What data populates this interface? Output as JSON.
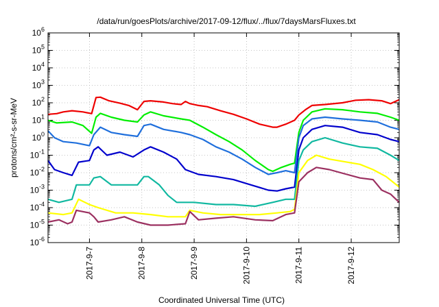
{
  "chart_data": {
    "type": "line",
    "title": "/data/run/goesPlots/archive/2017-09-12/flux/../flux/7daysMarsFluxes.txt",
    "xlabel": "Coordinated Universal Time (UTC)",
    "ylabel": "protons/cm²-s-sr-MeV",
    "yscale": "log",
    "ylim": [
      1e-06,
      1000000.0
    ],
    "xlim": [
      "2017-09-06T05:00",
      "2017-09-12T22:00"
    ],
    "grid": true,
    "x_ticks": [
      "2017-9-7",
      "2017-9-8",
      "2017-9-9",
      "2017-9-10",
      "2017-9-11",
      "2017-9-12"
    ],
    "y_ticks": [
      {
        "base": "10",
        "exp": "-6"
      },
      {
        "base": "10",
        "exp": "-5"
      },
      {
        "base": "10",
        "exp": "-4"
      },
      {
        "base": "10",
        "exp": "-3"
      },
      {
        "base": "10",
        "exp": "-2"
      },
      {
        "base": "10",
        "exp": "-1"
      },
      {
        "base": "10",
        "exp": "0"
      },
      {
        "base": "10",
        "exp": "1"
      },
      {
        "base": "10",
        "exp": "2"
      },
      {
        "base": "10",
        "exp": "3"
      },
      {
        "base": "10",
        "exp": "4"
      },
      {
        "base": "10",
        "exp": "5"
      },
      {
        "base": "10",
        "exp": "6"
      }
    ],
    "series": [
      {
        "color": "#ee0000",
        "points": [
          [
            "2017-09-06T05:00",
            22
          ],
          [
            "2017-09-06T09:00",
            24
          ],
          [
            "2017-09-06T12:00",
            30
          ],
          [
            "2017-09-06T16:00",
            35
          ],
          [
            "2017-09-06T21:00",
            30
          ],
          [
            "2017-09-07T01:00",
            24
          ],
          [
            "2017-09-07T03:00",
            200
          ],
          [
            "2017-09-07T05:00",
            210
          ],
          [
            "2017-09-07T09:00",
            130
          ],
          [
            "2017-09-07T14:00",
            95
          ],
          [
            "2017-09-07T18:00",
            70
          ],
          [
            "2017-09-07T22:00",
            40
          ],
          [
            "2017-09-08T01:00",
            120
          ],
          [
            "2017-09-08T04:00",
            130
          ],
          [
            "2017-09-08T10:00",
            110
          ],
          [
            "2017-09-08T14:00",
            90
          ],
          [
            "2017-09-08T18:00",
            80
          ],
          [
            "2017-09-08T20:00",
            120
          ],
          [
            "2017-09-08T22:00",
            90
          ],
          [
            "2017-09-09T02:00",
            70
          ],
          [
            "2017-09-09T06:00",
            60
          ],
          [
            "2017-09-09T12:00",
            35
          ],
          [
            "2017-09-09T18:00",
            22
          ],
          [
            "2017-09-10T00:00",
            12
          ],
          [
            "2017-09-10T06:00",
            6
          ],
          [
            "2017-09-10T12:00",
            4
          ],
          [
            "2017-09-10T14:00",
            4
          ],
          [
            "2017-09-10T18:00",
            6
          ],
          [
            "2017-09-10T22:00",
            10
          ],
          [
            "2017-09-11T00:00",
            20
          ],
          [
            "2017-09-11T03:00",
            40
          ],
          [
            "2017-09-11T06:00",
            70
          ],
          [
            "2017-09-11T12:00",
            80
          ],
          [
            "2017-09-11T20:00",
            100
          ],
          [
            "2017-09-12T02:00",
            140
          ],
          [
            "2017-09-12T08:00",
            150
          ],
          [
            "2017-09-12T14:00",
            130
          ],
          [
            "2017-09-12T18:00",
            90
          ],
          [
            "2017-09-12T22:00",
            150
          ]
        ]
      },
      {
        "color": "#00ee00",
        "points": [
          [
            "2017-09-06T05:00",
            10
          ],
          [
            "2017-09-06T09:00",
            7
          ],
          [
            "2017-09-06T16:00",
            8
          ],
          [
            "2017-09-06T21:00",
            5
          ],
          [
            "2017-09-07T01:00",
            1.8
          ],
          [
            "2017-09-07T03:00",
            15
          ],
          [
            "2017-09-07T05:00",
            25
          ],
          [
            "2017-09-07T10:00",
            15
          ],
          [
            "2017-09-07T16:00",
            10
          ],
          [
            "2017-09-07T22:00",
            8
          ],
          [
            "2017-09-08T01:00",
            20
          ],
          [
            "2017-09-08T04:00",
            30
          ],
          [
            "2017-09-08T10:00",
            18
          ],
          [
            "2017-09-08T18:00",
            12
          ],
          [
            "2017-09-08T22:00",
            10
          ],
          [
            "2017-09-09T04:00",
            4
          ],
          [
            "2017-09-09T10:00",
            1.5
          ],
          [
            "2017-09-09T16:00",
            0.6
          ],
          [
            "2017-09-09T22:00",
            0.2
          ],
          [
            "2017-09-10T04:00",
            0.05
          ],
          [
            "2017-09-10T10:00",
            0.015
          ],
          [
            "2017-09-10T12:00",
            0.012
          ],
          [
            "2017-09-10T16:00",
            0.02
          ],
          [
            "2017-09-10T20:00",
            0.03
          ],
          [
            "2017-09-10T22:00",
            0.035
          ],
          [
            "2017-09-11T00:00",
            2
          ],
          [
            "2017-09-11T02:00",
            10
          ],
          [
            "2017-09-11T06:00",
            30
          ],
          [
            "2017-09-11T12:00",
            45
          ],
          [
            "2017-09-11T20:00",
            40
          ],
          [
            "2017-09-12T04:00",
            30
          ],
          [
            "2017-09-12T12:00",
            25
          ],
          [
            "2017-09-12T18:00",
            15
          ],
          [
            "2017-09-12T22:00",
            10
          ]
        ]
      },
      {
        "color": "#1f6fdc",
        "points": [
          [
            "2017-09-06T05:00",
            2.5
          ],
          [
            "2017-09-06T08:00",
            1
          ],
          [
            "2017-09-06T12:00",
            0.6
          ],
          [
            "2017-09-06T18:00",
            0.5
          ],
          [
            "2017-09-07T00:00",
            0.35
          ],
          [
            "2017-09-07T02:00",
            1.5
          ],
          [
            "2017-09-07T05:00",
            4
          ],
          [
            "2017-09-07T10:00",
            2
          ],
          [
            "2017-09-07T16:00",
            1.5
          ],
          [
            "2017-09-07T22:00",
            1.2
          ],
          [
            "2017-09-08T01:00",
            5
          ],
          [
            "2017-09-08T04:00",
            6
          ],
          [
            "2017-09-08T10:00",
            3
          ],
          [
            "2017-09-08T18:00",
            2
          ],
          [
            "2017-09-08T22:00",
            1.5
          ],
          [
            "2017-09-09T04:00",
            0.8
          ],
          [
            "2017-09-09T10:00",
            0.3
          ],
          [
            "2017-09-09T16:00",
            0.15
          ],
          [
            "2017-09-09T22:00",
            0.06
          ],
          [
            "2017-09-10T04:00",
            0.02
          ],
          [
            "2017-09-10T10:00",
            0.008
          ],
          [
            "2017-09-10T14:00",
            0.01
          ],
          [
            "2017-09-10T18:00",
            0.013
          ],
          [
            "2017-09-10T22:00",
            0.01
          ],
          [
            "2017-09-11T00:00",
            1
          ],
          [
            "2017-09-11T02:00",
            5
          ],
          [
            "2017-09-11T06:00",
            12
          ],
          [
            "2017-09-11T12:00",
            15
          ],
          [
            "2017-09-11T20:00",
            12
          ],
          [
            "2017-09-12T04:00",
            10
          ],
          [
            "2017-09-12T12:00",
            8
          ],
          [
            "2017-09-12T18:00",
            4
          ],
          [
            "2017-09-12T22:00",
            3
          ]
        ]
      },
      {
        "color": "#0000cc",
        "points": [
          [
            "2017-09-06T05:00",
            0.05
          ],
          [
            "2017-09-06T08:00",
            0.015
          ],
          [
            "2017-09-06T12:00",
            0.01
          ],
          [
            "2017-09-06T16:00",
            0.007
          ],
          [
            "2017-09-06T19:00",
            0.04
          ],
          [
            "2017-09-07T00:00",
            0.05
          ],
          [
            "2017-09-07T02:00",
            0.2
          ],
          [
            "2017-09-07T04:00",
            0.3
          ],
          [
            "2017-09-07T08:00",
            0.1
          ],
          [
            "2017-09-07T14:00",
            0.15
          ],
          [
            "2017-09-07T20:00",
            0.08
          ],
          [
            "2017-09-08T01:00",
            0.2
          ],
          [
            "2017-09-08T04:00",
            0.3
          ],
          [
            "2017-09-08T10:00",
            0.15
          ],
          [
            "2017-09-08T16:00",
            0.06
          ],
          [
            "2017-09-08T20:00",
            0.015
          ],
          [
            "2017-09-09T02:00",
            0.008
          ],
          [
            "2017-09-09T10:00",
            0.006
          ],
          [
            "2017-09-09T18:00",
            0.004
          ],
          [
            "2017-09-10T02:00",
            0.002
          ],
          [
            "2017-09-10T10:00",
            0.001
          ],
          [
            "2017-09-10T14:00",
            0.0009
          ],
          [
            "2017-09-10T18:00",
            0.0012
          ],
          [
            "2017-09-10T22:00",
            0.0015
          ],
          [
            "2017-09-11T00:00",
            0.2
          ],
          [
            "2017-09-11T02:00",
            1
          ],
          [
            "2017-09-11T06:00",
            3
          ],
          [
            "2017-09-11T12:00",
            5
          ],
          [
            "2017-09-11T20:00",
            4
          ],
          [
            "2017-09-12T04:00",
            2
          ],
          [
            "2017-09-12T12:00",
            1.5
          ],
          [
            "2017-09-12T18:00",
            0.8
          ],
          [
            "2017-09-12T22:00",
            0.6
          ]
        ]
      },
      {
        "color": "#10b8a0",
        "points": [
          [
            "2017-09-06T05:00",
            0.0003
          ],
          [
            "2017-09-06T10:00",
            0.0002
          ],
          [
            "2017-09-06T16:00",
            0.0003
          ],
          [
            "2017-09-06T18:00",
            0.002
          ],
          [
            "2017-09-07T00:00",
            0.002
          ],
          [
            "2017-09-07T02:00",
            0.005
          ],
          [
            "2017-09-07T05:00",
            0.006
          ],
          [
            "2017-09-07T10:00",
            0.002
          ],
          [
            "2017-09-07T16:00",
            0.002
          ],
          [
            "2017-09-07T22:00",
            0.002
          ],
          [
            "2017-09-08T01:00",
            0.006
          ],
          [
            "2017-09-08T03:00",
            0.006
          ],
          [
            "2017-09-08T08:00",
            0.002
          ],
          [
            "2017-09-08T12:00",
            0.0005
          ],
          [
            "2017-09-08T16:00",
            0.0002
          ],
          [
            "2017-09-09T00:00",
            0.0002
          ],
          [
            "2017-09-09T10:00",
            0.00015
          ],
          [
            "2017-09-09T18:00",
            0.00015
          ],
          [
            "2017-09-10T04:00",
            0.00012
          ],
          [
            "2017-09-10T12:00",
            0.0002
          ],
          [
            "2017-09-10T18:00",
            0.0003
          ],
          [
            "2017-09-10T22:00",
            0.0003
          ],
          [
            "2017-09-11T00:00",
            0.05
          ],
          [
            "2017-09-11T02:00",
            0.2
          ],
          [
            "2017-09-11T06:00",
            0.6
          ],
          [
            "2017-09-11T12:00",
            1
          ],
          [
            "2017-09-11T20:00",
            0.5
          ],
          [
            "2017-09-12T04:00",
            0.3
          ],
          [
            "2017-09-12T12:00",
            0.25
          ],
          [
            "2017-09-12T18:00",
            0.1
          ],
          [
            "2017-09-12T22:00",
            0.05
          ]
        ]
      },
      {
        "color": "#ffff00",
        "points": [
          [
            "2017-09-06T05:00",
            5e-05
          ],
          [
            "2017-09-06T12:00",
            4e-05
          ],
          [
            "2017-09-06T16:00",
            5e-05
          ],
          [
            "2017-09-06T19:00",
            0.0003
          ],
          [
            "2017-09-07T00:00",
            0.00015
          ],
          [
            "2017-09-07T04:00",
            0.0001
          ],
          [
            "2017-09-07T12:00",
            5e-05
          ],
          [
            "2017-09-07T20:00",
            5e-05
          ],
          [
            "2017-09-08T04:00",
            4e-05
          ],
          [
            "2017-09-08T12:00",
            3e-05
          ],
          [
            "2017-09-08T20:00",
            3e-05
          ],
          [
            "2017-09-08T22:00",
            7e-05
          ],
          [
            "2017-09-09T04:00",
            5e-05
          ],
          [
            "2017-09-09T12:00",
            4e-05
          ],
          [
            "2017-09-09T20:00",
            4e-05
          ],
          [
            "2017-09-10T06:00",
            4e-05
          ],
          [
            "2017-09-10T14:00",
            5e-05
          ],
          [
            "2017-09-10T20:00",
            6e-05
          ],
          [
            "2017-09-10T22:00",
            8e-05
          ],
          [
            "2017-09-11T00:00",
            0.01
          ],
          [
            "2017-09-11T04:00",
            0.05
          ],
          [
            "2017-09-11T08:00",
            0.1
          ],
          [
            "2017-09-11T14:00",
            0.06
          ],
          [
            "2017-09-11T22:00",
            0.04
          ],
          [
            "2017-09-12T04:00",
            0.03
          ],
          [
            "2017-09-12T10:00",
            0.015
          ],
          [
            "2017-09-12T16:00",
            0.006
          ],
          [
            "2017-09-12T22:00",
            0.0015
          ]
        ]
      },
      {
        "color": "#9b3060",
        "points": [
          [
            "2017-09-06T05:00",
            1.5e-05
          ],
          [
            "2017-09-06T10:00",
            2e-05
          ],
          [
            "2017-09-06T14:00",
            1.2e-05
          ],
          [
            "2017-09-06T16:00",
            1.5e-05
          ],
          [
            "2017-09-06T18:00",
            7e-05
          ],
          [
            "2017-09-07T00:00",
            5e-05
          ],
          [
            "2017-09-07T02:00",
            3e-05
          ],
          [
            "2017-09-07T04:00",
            1.5e-05
          ],
          [
            "2017-09-07T10:00",
            2e-05
          ],
          [
            "2017-09-07T16:00",
            3e-05
          ],
          [
            "2017-09-07T22:00",
            1.5e-05
          ],
          [
            "2017-09-08T04:00",
            1e-05
          ],
          [
            "2017-09-08T12:00",
            1e-05
          ],
          [
            "2017-09-08T20:00",
            1.2e-05
          ],
          [
            "2017-09-08T22:00",
            6e-05
          ],
          [
            "2017-09-09T02:00",
            2e-05
          ],
          [
            "2017-09-09T10:00",
            2.5e-05
          ],
          [
            "2017-09-09T18:00",
            3e-05
          ],
          [
            "2017-09-10T04:00",
            2e-05
          ],
          [
            "2017-09-10T12:00",
            1.8e-05
          ],
          [
            "2017-09-10T18:00",
            4e-05
          ],
          [
            "2017-09-10T22:00",
            5e-05
          ],
          [
            "2017-09-11T00:00",
            0.003
          ],
          [
            "2017-09-11T04:00",
            0.01
          ],
          [
            "2017-09-11T08:00",
            0.02
          ],
          [
            "2017-09-11T14:00",
            0.015
          ],
          [
            "2017-09-11T22:00",
            0.008
          ],
          [
            "2017-09-12T04:00",
            0.005
          ],
          [
            "2017-09-12T10:00",
            0.004
          ],
          [
            "2017-09-12T14:00",
            0.001
          ],
          [
            "2017-09-12T18:00",
            0.0006
          ],
          [
            "2017-09-12T22:00",
            0.0002
          ]
        ]
      }
    ]
  }
}
